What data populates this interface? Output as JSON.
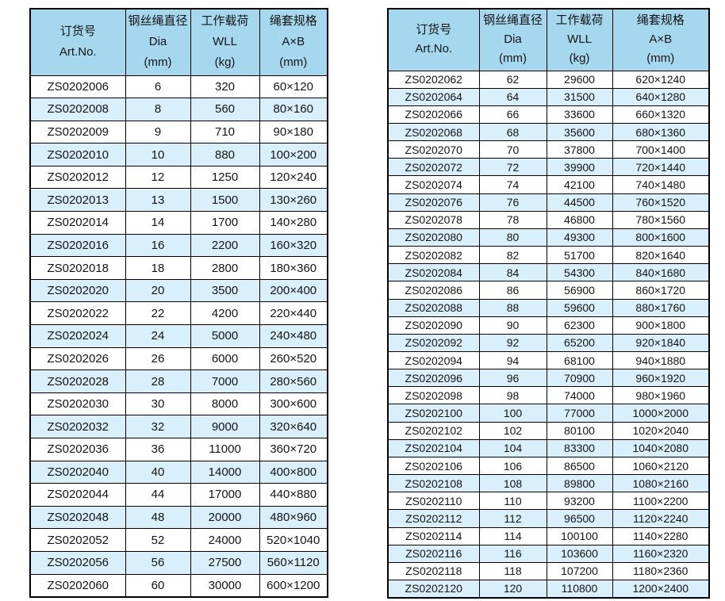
{
  "colors": {
    "header_bg": "#a5d8ef",
    "stripe_bg": "#d9effb",
    "row_bg": "#ffffff",
    "border": "#000000",
    "text": "#141414"
  },
  "tables": [
    {
      "id": "left-spec-table",
      "columns": [
        {
          "key": "art_no",
          "lines": [
            "订货号",
            "Art.No."
          ]
        },
        {
          "key": "dia",
          "lines": [
            "钢丝绳直径",
            "Dia",
            "(mm)"
          ]
        },
        {
          "key": "wll",
          "lines": [
            "工作载荷",
            "WLL",
            "(kg)"
          ]
        },
        {
          "key": "spec",
          "lines": [
            "绳套规格",
            "A×B",
            "(mm)"
          ]
        }
      ],
      "rows": [
        [
          "ZS0202006",
          "6",
          "320",
          "60×120"
        ],
        [
          "ZS0202008",
          "8",
          "560",
          "80×160"
        ],
        [
          "ZS0202009",
          "9",
          "710",
          "90×180"
        ],
        [
          "ZS0202010",
          "10",
          "880",
          "100×200"
        ],
        [
          "ZS0202012",
          "12",
          "1250",
          "120×240"
        ],
        [
          "ZS0202013",
          "13",
          "1500",
          "130×260"
        ],
        [
          "ZS0202014",
          "14",
          "1700",
          "140×280"
        ],
        [
          "ZS0202016",
          "16",
          "2200",
          "160×320"
        ],
        [
          "ZS0202018",
          "18",
          "2800",
          "180×360"
        ],
        [
          "ZS0202020",
          "20",
          "3500",
          "200×400"
        ],
        [
          "ZS0202022",
          "22",
          "4200",
          "220×440"
        ],
        [
          "ZS0202024",
          "24",
          "5000",
          "240×480"
        ],
        [
          "ZS0202026",
          "26",
          "6000",
          "260×520"
        ],
        [
          "ZS0202028",
          "28",
          "7000",
          "280×560"
        ],
        [
          "ZS0202030",
          "30",
          "8000",
          "300×600"
        ],
        [
          "ZS0202032",
          "32",
          "9000",
          "320×640"
        ],
        [
          "ZS0202036",
          "36",
          "11000",
          "360×720"
        ],
        [
          "ZS0202040",
          "40",
          "14000",
          "400×800"
        ],
        [
          "ZS0202044",
          "44",
          "17000",
          "440×880"
        ],
        [
          "ZS0202048",
          "48",
          "20000",
          "480×960"
        ],
        [
          "ZS0202052",
          "52",
          "24000",
          "520×1040"
        ],
        [
          "ZS0202056",
          "56",
          "27500",
          "560×1120"
        ],
        [
          "ZS0202060",
          "60",
          "30000",
          "600×1200"
        ]
      ]
    },
    {
      "id": "right-spec-table",
      "columns": [
        {
          "key": "art_no",
          "lines": [
            "订货号",
            "Art.No."
          ]
        },
        {
          "key": "dia",
          "lines": [
            "钢丝绳直径",
            "Dia",
            "(mm)"
          ]
        },
        {
          "key": "wll",
          "lines": [
            "工作载荷",
            "WLL",
            "(kg)"
          ]
        },
        {
          "key": "spec",
          "lines": [
            "绳套规格",
            "A×B",
            "(mm)"
          ]
        }
      ],
      "rows": [
        [
          "ZS0202062",
          "62",
          "29600",
          "620×1240"
        ],
        [
          "ZS0202064",
          "64",
          "31500",
          "640×1280"
        ],
        [
          "ZS0202066",
          "66",
          "33600",
          "660×1320"
        ],
        [
          "ZS0202068",
          "68",
          "35600",
          "680×1360"
        ],
        [
          "ZS0202070",
          "70",
          "37800",
          "700×1400"
        ],
        [
          "ZS0202072",
          "72",
          "39900",
          "720×1440"
        ],
        [
          "ZS0202074",
          "74",
          "42100",
          "740×1480"
        ],
        [
          "ZS0202076",
          "76",
          "44500",
          "760×1520"
        ],
        [
          "ZS0202078",
          "78",
          "46800",
          "780×1560"
        ],
        [
          "ZS0202080",
          "80",
          "49300",
          "800×1600"
        ],
        [
          "ZS0202082",
          "82",
          "51700",
          "820×1640"
        ],
        [
          "ZS0202084",
          "84",
          "54300",
          "840×1680"
        ],
        [
          "ZS0202086",
          "86",
          "56900",
          "860×1720"
        ],
        [
          "ZS0202088",
          "88",
          "59600",
          "880×1760"
        ],
        [
          "ZS0202090",
          "90",
          "62300",
          "900×1800"
        ],
        [
          "ZS0202092",
          "92",
          "65200",
          "920×1840"
        ],
        [
          "ZS0202094",
          "94",
          "68100",
          "940×1880"
        ],
        [
          "ZS0202096",
          "96",
          "70900",
          "960×1920"
        ],
        [
          "ZS0202098",
          "98",
          "74000",
          "980×1960"
        ],
        [
          "ZS0202100",
          "100",
          "77000",
          "1000×2000"
        ],
        [
          "ZS0202102",
          "102",
          "80100",
          "1020×2040"
        ],
        [
          "ZS0202104",
          "104",
          "83300",
          "1040×2080"
        ],
        [
          "ZS0202106",
          "106",
          "86500",
          "1060×2120"
        ],
        [
          "ZS0202108",
          "108",
          "89800",
          "1080×2160"
        ],
        [
          "ZS0202110",
          "110",
          "93200",
          "1100×2200"
        ],
        [
          "ZS0202112",
          "112",
          "96500",
          "1120×2240"
        ],
        [
          "ZS0202114",
          "114",
          "100100",
          "1140×2280"
        ],
        [
          "ZS0202116",
          "116",
          "103600",
          "1160×2320"
        ],
        [
          "ZS0202118",
          "118",
          "107200",
          "1180×2360"
        ],
        [
          "ZS0202120",
          "120",
          "110800",
          "1200×2400"
        ]
      ]
    }
  ]
}
